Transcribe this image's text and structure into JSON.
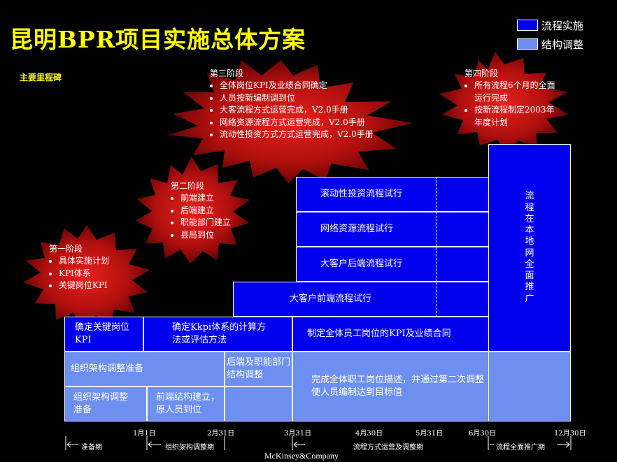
{
  "title": "昆明BPR项目实施总体方案",
  "subtitle": "主要里程碑",
  "legend": [
    {
      "label": "流程实施",
      "color": "#0000ee"
    },
    {
      "label": "结构调整",
      "color": "#6c8ff0"
    }
  ],
  "phases": [
    {
      "title": "第一阶段",
      "items": [
        "具体实施计划",
        "KPI体系",
        "关键岗位KPI"
      ]
    },
    {
      "title": "第二阶段",
      "items": [
        "前端建立",
        "后端建立",
        "职能部门建立",
        "县局到位"
      ]
    },
    {
      "title": "第三阶段",
      "items": [
        "全体岗位KPI及业绩合同确定",
        "人员按新编制调到位",
        "大客流程方式运营完成，V2.0手册",
        "网络资源流程方式运营完成，V2.0手册",
        "流动性投资方式方式运营完成，V2.0手册"
      ]
    },
    {
      "title": "第四阶段",
      "items": [
        "所有流程6个月的全面运行完成",
        "按新流程制定2003年年度计划"
      ]
    }
  ],
  "blocks": {
    "rolling": "滚动性投资流程试行",
    "network": "网络资源流程试行",
    "backend_big": "大客户后端流程试行",
    "frontend_big": "大客户前端流程试行",
    "key_kpi": "确定关键岗位KPI",
    "kkpi_calc": "确定Kkpi体系的计算方法或评估方法",
    "all_kpi": "制定全体员工岗位的KPI及业绩合同",
    "rollout": "流程在本地网全面推广",
    "org_prep": "组织架构调整准备",
    "backend_func": "后端及职能部门结构调整",
    "complete_desc": "完成全体职工岗位描述，并通过第二次调整使人员编制达到目标值",
    "org_prep2": "组织架构调整准备",
    "front_struct": "前端结构建立，原人员到位"
  },
  "dates": [
    "1月1日",
    "2月31日",
    "3月31日",
    "4月30日",
    "5月31日",
    "6月30日",
    "12月30日"
  ],
  "periods": [
    "准备期",
    "组织架构调整期",
    "流程方式运营及调整期",
    "流程全面推广期"
  ],
  "footer": "McKinsey&Company"
}
